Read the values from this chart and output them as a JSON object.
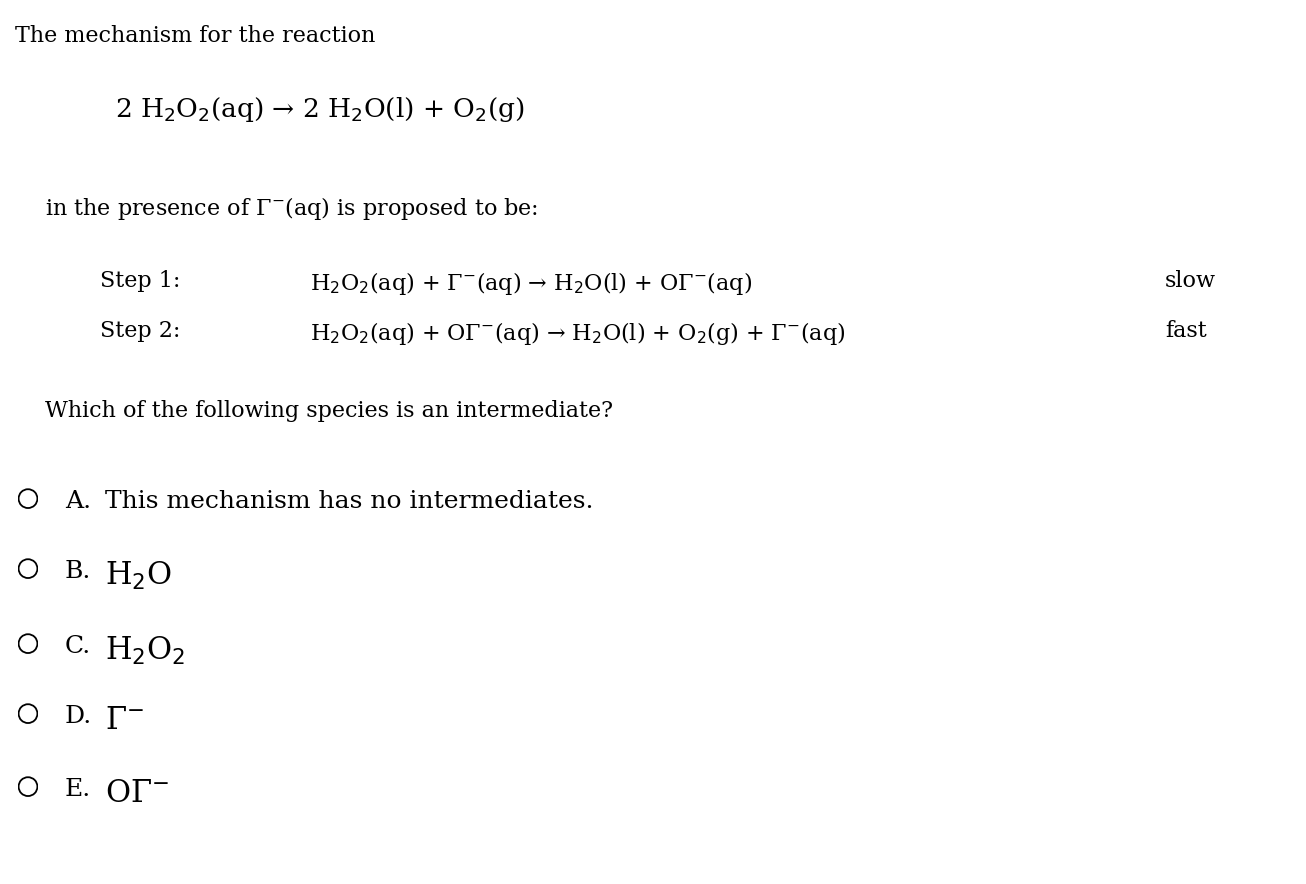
{
  "bg_color": "#ffffff",
  "text_color": "#000000",
  "title": "The mechanism for the reaction",
  "overall_reaction": "2 H$_2$O$_2$(aq) → 2 H$_2$O(l) + O$_2$(g)",
  "presence_text": "in the presence of Γ$^{-}$(aq) is proposed to be:",
  "step1_label": "Step 1:",
  "step1_eq": "H$_2$O$_2$(aq) + Γ$^{-}$(aq) → H$_2$O(l) + OΓ$^{-}$(aq)",
  "step1_rate": "slow",
  "step2_label": "Step 2:",
  "step2_eq": "H$_2$O$_2$(aq) + OΓ$^{-}$(aq) → H$_2$O(l) + O$_2$(g) + Γ$^{-}$(aq)",
  "step2_rate": "fast",
  "question": "Which of the following species is an intermediate?",
  "options": [
    {
      "letter": "A.",
      "text": "This mechanism has no intermediates."
    },
    {
      "letter": "B.",
      "text": "H$_2$O"
    },
    {
      "letter": "C.",
      "text": "H$_2$O$_2$"
    },
    {
      "letter": "D.",
      "text": "Γ$^{-}$"
    },
    {
      "letter": "E.",
      "text": "OΓ$^{-}$"
    }
  ],
  "font_size_main": 16,
  "font_size_eq": 16,
  "font_size_options": 18,
  "font_size_option_chem": 22
}
